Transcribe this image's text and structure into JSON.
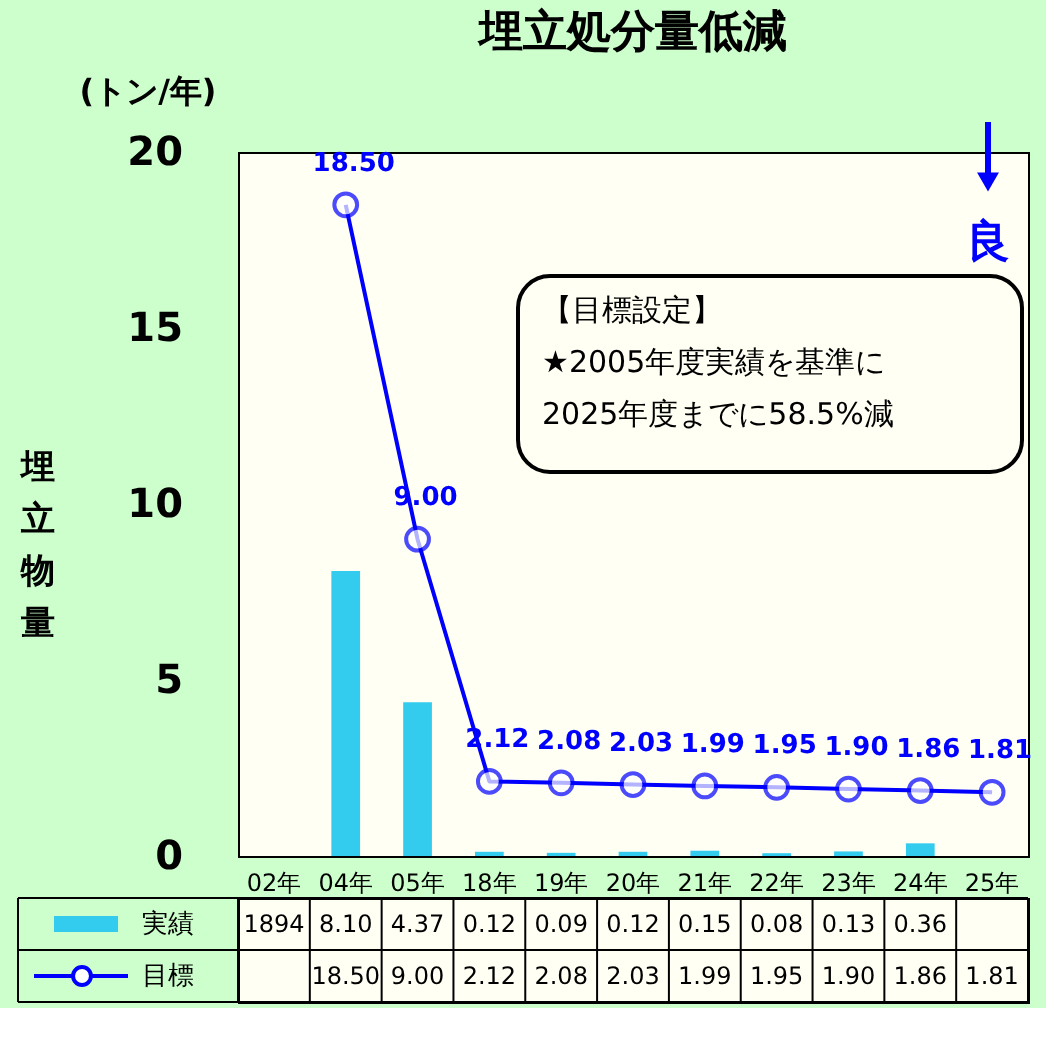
{
  "chart_data": {
    "type": "bar",
    "title": "埋立処分量低減",
    "ylabel": "埋立物量",
    "categories": [
      "02年",
      "04年",
      "05年",
      "18年",
      "19年",
      "20年",
      "21年",
      "22年",
      "23年",
      "24年",
      "25年"
    ],
    "series": [
      {
        "name": "実績",
        "color": "#33ccee",
        "values": [
          null,
          8.1,
          4.37,
          0.12,
          0.09,
          0.12,
          0.15,
          0.08,
          0.13,
          0.36,
          null
        ],
        "value_labels": [
          "1894",
          "8.10",
          "4.37",
          "0.12",
          "0.09",
          "0.12",
          "0.15",
          "0.08",
          "0.13",
          "0.36",
          null
        ]
      },
      {
        "name": "目標",
        "type": "line",
        "color": "#0000ff",
        "marker": "circle",
        "values": [
          null,
          18.5,
          9.0,
          2.12,
          2.08,
          2.03,
          1.99,
          1.95,
          1.9,
          1.86,
          1.81
        ],
        "value_labels": [
          null,
          "18.50",
          "9.00",
          "2.12",
          "2.08",
          "2.03",
          "1.99",
          "1.95",
          "1.90",
          "1.86",
          "1.81"
        ]
      }
    ],
    "ylim": [
      0,
      20
    ],
    "yticks": [
      0,
      5,
      10,
      15,
      20
    ],
    "grid": false,
    "legend": "bottom",
    "annotations": [
      "(トン/年)",
      "【目標設定】\n★2005年度実績を基準に\n2025年度までに58.5%減",
      "良"
    ]
  }
}
